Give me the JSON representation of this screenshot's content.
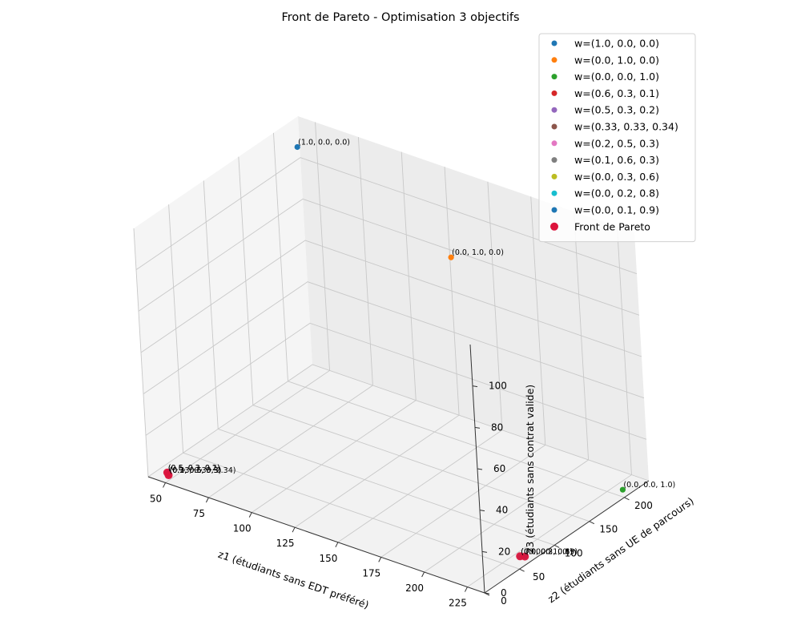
{
  "chart_data": {
    "type": "scatter",
    "projection": "3d",
    "title": "Front de Pareto - Optimisation 3 objectifs",
    "xlabel": "z1 (étudiants sans EDT préféré)",
    "ylabel": "z2 (étudiants sans UE de parcours)",
    "zlabel": "z3 (étudiants sans contrat valide)",
    "xlim": [
      40,
      235
    ],
    "ylim": [
      0,
      235
    ],
    "zlim": [
      0,
      120
    ],
    "xticks": [
      50,
      75,
      100,
      125,
      150,
      175,
      200,
      225
    ],
    "yticks": [
      0,
      50,
      100,
      150,
      200
    ],
    "zticks": [
      0,
      20,
      40,
      60,
      80,
      100
    ],
    "grid": true,
    "legend_position": "top-right",
    "series": [
      {
        "name": "w=(1.0, 0.0, 0.0)",
        "color": "#1f77b4",
        "points": [
          {
            "x": 45,
            "y": 220,
            "z": 110
          }
        ],
        "annotation": "(1.0, 0.0, 0.0)"
      },
      {
        "name": "w=(0.0, 1.0, 0.0)",
        "color": "#ff7f0e",
        "points": [
          {
            "x": 130,
            "y": 225,
            "z": 80
          }
        ],
        "annotation": "(0.0, 1.0, 0.0)"
      },
      {
        "name": "w=(0.0, 0.0, 1.0)",
        "color": "#2ca02c",
        "points": [
          {
            "x": 230,
            "y": 210,
            "z": 0
          }
        ],
        "annotation": "(0.0, 0.0, 1.0)"
      },
      {
        "name": "w=(0.6, 0.3, 0.1)",
        "color": "#d62728",
        "points": [
          {
            "x": 45,
            "y": 15,
            "z": 0
          }
        ],
        "annotation": "(0.6, 0.3, 0.1)"
      },
      {
        "name": "w=(0.5, 0.3, 0.2)",
        "color": "#9467bd",
        "points": [
          {
            "x": 45,
            "y": 15,
            "z": 0
          }
        ],
        "annotation": "(0.5, 0.3, 0.2)"
      },
      {
        "name": "w=(0.33, 0.33, 0.34)",
        "color": "#8c564b",
        "points": [
          {
            "x": 47,
            "y": 12,
            "z": 0
          }
        ],
        "annotation": "(0.33, 0.33, 0.34)"
      },
      {
        "name": "w=(0.2, 0.5, 0.3)",
        "color": "#e377c2",
        "points": [
          {
            "x": 47,
            "y": 12,
            "z": 0
          }
        ],
        "annotation": "(0.2, 0.5, 0.3)"
      },
      {
        "name": "w=(0.1, 0.6, 0.3)",
        "color": "#7f7f7f",
        "points": [
          {
            "x": 47,
            "y": 12,
            "z": 0
          }
        ],
        "annotation": "(0.1, 0.6, 0.3)"
      },
      {
        "name": "w=(0.0, 0.3, 0.6)",
        "color": "#bcbd22",
        "points": [
          {
            "x": 228,
            "y": 68,
            "z": 0
          }
        ],
        "annotation": "(0.0, 0.3, 0.6)"
      },
      {
        "name": "w=(0.0, 0.2, 0.8)",
        "color": "#17becf",
        "points": [
          {
            "x": 228,
            "y": 68,
            "z": 0
          }
        ],
        "annotation": "(0.0, 0.2, 0.8)"
      },
      {
        "name": "w=(0.0, 0.1, 0.9)",
        "color": "#1f77b4",
        "points": [
          {
            "x": 230,
            "y": 70,
            "z": 0
          }
        ],
        "annotation": "(0.0, 0.1, 0.9)"
      },
      {
        "name": "Front de Pareto",
        "color": "#dc143c",
        "points": [
          {
            "x": 45,
            "y": 15,
            "z": 0
          },
          {
            "x": 47,
            "y": 12,
            "z": 0
          },
          {
            "x": 228,
            "y": 68,
            "z": 0
          },
          {
            "x": 230,
            "y": 70,
            "z": 0
          }
        ]
      }
    ]
  }
}
